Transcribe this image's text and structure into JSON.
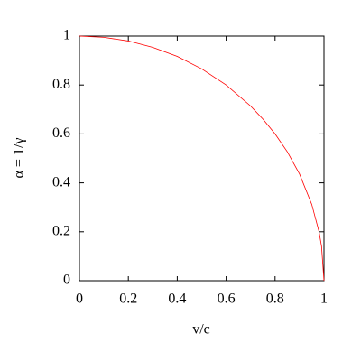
{
  "chart_data": {
    "type": "line",
    "x_label": "v/c",
    "y_label": "α = 1/γ",
    "x": [
      0,
      0.1,
      0.2,
      0.3,
      0.4,
      0.5,
      0.6,
      0.7,
      0.75,
      0.8,
      0.85,
      0.9,
      0.95,
      0.98,
      0.99,
      1
    ],
    "series": [
      {
        "color": "#ff0000",
        "values": [
          1,
          0.995,
          0.98,
          0.954,
          0.917,
          0.866,
          0.8,
          0.714,
          0.661,
          0.6,
          0.527,
          0.436,
          0.312,
          0.199,
          0.141,
          0
        ]
      }
    ],
    "xlim": [
      0,
      1
    ],
    "ylim": [
      0,
      1
    ],
    "xticks": [
      0,
      0.2,
      0.4,
      0.6,
      0.8,
      1
    ],
    "yticks": [
      0,
      0.2,
      0.4,
      0.6,
      0.8,
      1
    ]
  }
}
